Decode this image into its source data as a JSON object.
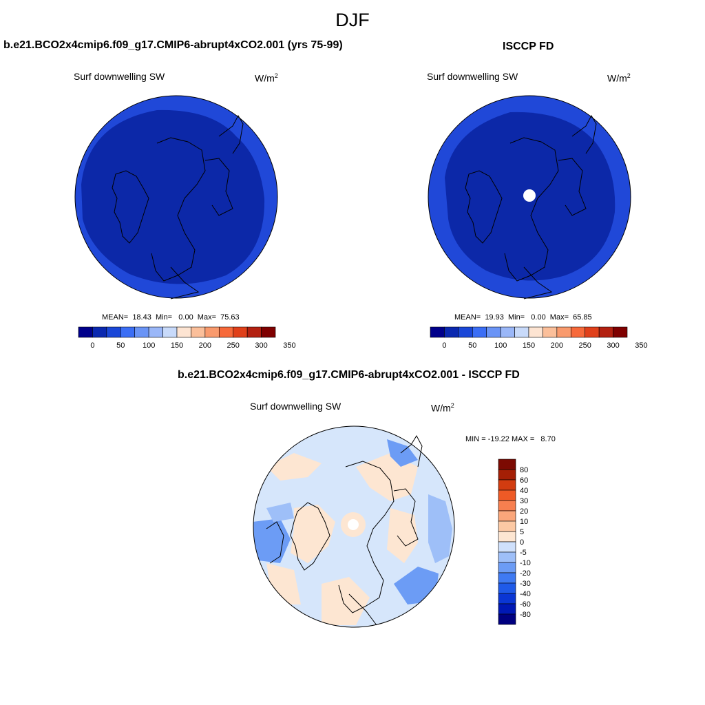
{
  "figure": {
    "title": "DJF"
  },
  "panels": [
    {
      "title": "b.e21.BCO2x4cmip6.f09_g17.CMIP6-abrupt4xCO2.001 (yrs 75-99)",
      "field": "Surf downwelling SW",
      "units": "W/m",
      "units_sup": "2",
      "stats": "MEAN=  18.43  Min=   0.00  Max=  75.63",
      "colorbar": {
        "orientation": "horizontal",
        "colors": [
          "#00008b",
          "#0a28b0",
          "#1a47d8",
          "#3b6ef5",
          "#6a94f6",
          "#9ab7f8",
          "#c8dafa",
          "#fde4d2",
          "#fbbf9a",
          "#f99a6d",
          "#f7693a",
          "#e0401a",
          "#b32010",
          "#7f0000"
        ],
        "tick_labels": [
          "0",
          "50",
          "100",
          "150",
          "200",
          "250",
          "300",
          "350"
        ]
      },
      "map": {
        "projection": "north polar stereographic",
        "fill": "dark-blue"
      }
    },
    {
      "title": "ISCCP FD",
      "field": "Surf downwelling SW",
      "units": "W/m",
      "units_sup": "2",
      "stats": "MEAN=  19.93  Min=   0.00  Max=  65.85",
      "colorbar": {
        "orientation": "horizontal",
        "colors": [
          "#00008b",
          "#0a28b0",
          "#1a47d8",
          "#3b6ef5",
          "#6a94f6",
          "#9ab7f8",
          "#c8dafa",
          "#fde4d2",
          "#fbbf9a",
          "#f99a6d",
          "#f7693a",
          "#e0401a",
          "#b32010",
          "#7f0000"
        ],
        "tick_labels": [
          "0",
          "50",
          "100",
          "150",
          "200",
          "250",
          "300",
          "350"
        ]
      },
      "map": {
        "projection": "north polar stereographic",
        "fill": "dark-blue",
        "missing_pole": true
      }
    },
    {
      "title": "b.e21.BCO2x4cmip6.f09_g17.CMIP6-abrupt4xCO2.001 - ISCCP FD",
      "field": "Surf downwelling SW",
      "units": "W/m",
      "units_sup": "2",
      "stats": "MIN = -19.22 MAX =   8.70",
      "colorbar": {
        "orientation": "vertical",
        "colors": [
          "#000080",
          "#0018b4",
          "#0a36d4",
          "#1f5ae8",
          "#3f7af2",
          "#6c9cf5",
          "#9ebff8",
          "#cfe0fb",
          "#fde6d2",
          "#fcc9a4",
          "#faa67a",
          "#f77f4f",
          "#ee5a26",
          "#d23c10",
          "#a41f05",
          "#7c0a02"
        ],
        "tick_labels": [
          "80",
          "60",
          "40",
          "30",
          "20",
          "10",
          "5",
          "0",
          "-5",
          "-10",
          "-20",
          "-30",
          "-40",
          "-60",
          "-80"
        ]
      },
      "map": {
        "projection": "north polar stereographic",
        "fill": "light-blue-and-peach"
      }
    }
  ]
}
